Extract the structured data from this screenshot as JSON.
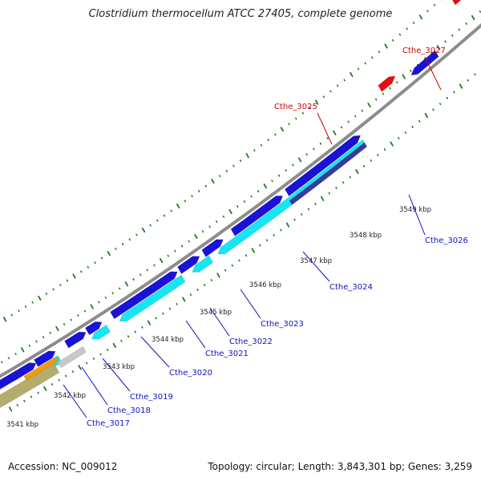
{
  "title": "Clostridium thermocellum ATCC 27405, complete genome",
  "footer": {
    "accession": "Accession: NC_009012",
    "summary": "Topology: circular; Length: 3,843,301 bp; Genes: 3,259"
  },
  "colors": {
    "backbone": "#8c8c8c",
    "cds_forward": "#1a12d6",
    "cds_reverse": "#16e6f2",
    "highlight": "#e60d0d",
    "dark_blue": "#3a3a9a",
    "orange": "#f59a0a",
    "silver": "#c8c8c8",
    "khaki": "#b5ad6e",
    "tick": "#1e7a1e",
    "label_blue": "#1010c8",
    "label_red": "#d00000"
  },
  "kbp_labels": [
    "3541 kbp",
    "3542 kbp",
    "3543 kbp",
    "3544 kbp",
    "3545 kbp",
    "3546 kbp",
    "3547 kbp",
    "3548 kbp",
    "3549 kbp"
  ],
  "gene_labels": [
    {
      "text": "Cthe_3017",
      "color": "blue"
    },
    {
      "text": "Cthe_3018",
      "color": "blue"
    },
    {
      "text": "Cthe_3019",
      "color": "blue"
    },
    {
      "text": "Cthe_3020",
      "color": "blue"
    },
    {
      "text": "Cthe_3021",
      "color": "blue"
    },
    {
      "text": "Cthe_3022",
      "color": "blue"
    },
    {
      "text": "Cthe_3023",
      "color": "blue"
    },
    {
      "text": "Cthe_3024",
      "color": "blue"
    },
    {
      "text": "Cthe_3026",
      "color": "blue"
    },
    {
      "text": "Cthe_3025",
      "color": "red"
    },
    {
      "text": "Cthe_3027",
      "color": "red"
    }
  ]
}
